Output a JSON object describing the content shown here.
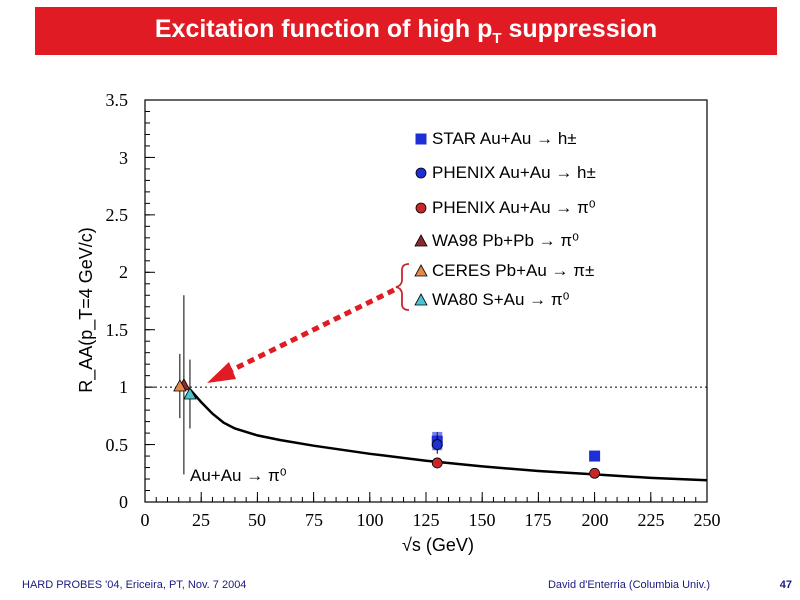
{
  "title": {
    "main": "Excitation function of  high p",
    "sub": "T",
    "tail": " suppression"
  },
  "footer": {
    "left": "HARD PROBES '04, Ericeira, PT, Nov. 7 2004",
    "right": "David d'Enterria (Columbia Univ.)",
    "page": "47"
  },
  "colors": {
    "title_bg": "#e11b24",
    "star": "#1f2fd6",
    "phenix_h": "#1f2fd6",
    "phenix_pi0": "#c8272a",
    "wa98": "#8b2a2a",
    "ceres": "#e4894a",
    "wa80": "#4cc3cf",
    "arrow": "#e11b24"
  },
  "chart_data": {
    "type": "scatter",
    "xlabel": "√s (GeV)",
    "ylabel": "R_AA(p_T=4 GeV/c)",
    "xlim": [
      0,
      250
    ],
    "ylim": [
      0,
      3.5
    ],
    "xticks": [
      0,
      25,
      50,
      75,
      100,
      125,
      150,
      175,
      200,
      225,
      250
    ],
    "yticks": [
      0,
      0.5,
      1,
      1.5,
      2,
      2.5,
      3,
      3.5
    ],
    "ytick_labels": [
      "0",
      "0.5",
      "1",
      "1.5",
      "2",
      "2.5",
      "3",
      "3.5"
    ],
    "reference_line": 1.0,
    "series": [
      {
        "name": "STAR Au+Au → h±",
        "marker": "square",
        "color": "#1f2fd6",
        "points": [
          {
            "x": 130,
            "y": 0.53,
            "err": 0.08
          },
          {
            "x": 200,
            "y": 0.4,
            "err": 0.02
          }
        ]
      },
      {
        "name": "PHENIX Au+Au → h±",
        "marker": "circle",
        "color": "#1f2fd6",
        "points": [
          {
            "x": 130,
            "y": 0.5,
            "err": 0.08
          }
        ]
      },
      {
        "name": "PHENIX Au+Au → π⁰",
        "marker": "circle",
        "color": "#c8272a",
        "points": [
          {
            "x": 130,
            "y": 0.34,
            "err": 0.04
          },
          {
            "x": 200,
            "y": 0.25,
            "err": 0.02
          }
        ]
      },
      {
        "name": "WA98 Pb+Pb → π⁰",
        "marker": "triangle",
        "color": "#8b2a2a",
        "points": [
          {
            "x": 17.3,
            "y": 1.02,
            "err": 0.78
          }
        ]
      },
      {
        "name": "CERES Pb+Au → π±",
        "marker": "triangle",
        "color": "#e4894a",
        "points": [
          {
            "x": 15.5,
            "y": 1.01,
            "err": 0.28
          }
        ]
      },
      {
        "name": "WA80 S+Au → π⁰",
        "marker": "triangle",
        "color": "#4cc3cf",
        "points": [
          {
            "x": 20,
            "y": 0.94,
            "err": 0.3
          }
        ]
      }
    ],
    "curve": {
      "label": "Au+Au → π⁰",
      "x": [
        20,
        25,
        30,
        35,
        40,
        50,
        60,
        75,
        100,
        125,
        150,
        175,
        200,
        225,
        250
      ],
      "y": [
        0.98,
        0.87,
        0.77,
        0.69,
        0.64,
        0.58,
        0.54,
        0.49,
        0.42,
        0.36,
        0.31,
        0.27,
        0.24,
        0.21,
        0.19
      ]
    }
  }
}
